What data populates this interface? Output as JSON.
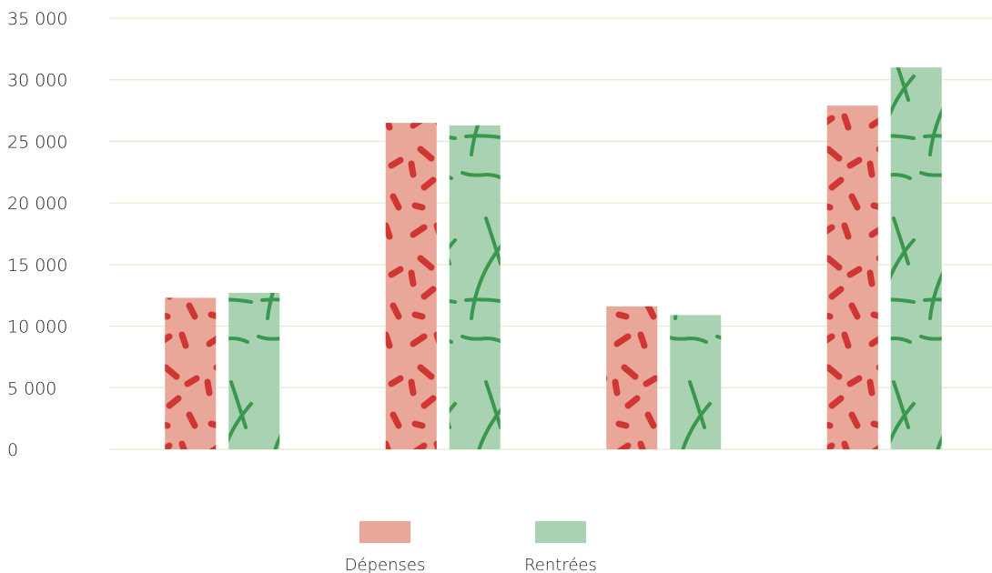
{
  "chart_data": {
    "type": "bar",
    "categories": [
      "",
      "",
      "",
      ""
    ],
    "series": [
      {
        "name": "Dépenses",
        "values": [
          12300,
          26500,
          11600,
          27900
        ]
      },
      {
        "name": "Rentrées",
        "values": [
          12700,
          26300,
          10900,
          31000
        ]
      }
    ],
    "ylim": [
      0,
      35000
    ],
    "yticks": [
      0,
      5000,
      10000,
      15000,
      20000,
      25000,
      30000,
      35000
    ],
    "ytick_labels": [
      "0",
      "5 000",
      "10 000",
      "15 000",
      "20 000",
      "25 000",
      "30 000",
      "35 000"
    ],
    "grid": true,
    "legend": "bottom-center",
    "colors": {
      "Dépenses": "#e8a798",
      "Rentrées": "#a9d2b2",
      "Dépenses_pattern": "#cc2222",
      "Rentrées_pattern": "#1e8a34",
      "gridline": "#dfe6c2"
    }
  }
}
